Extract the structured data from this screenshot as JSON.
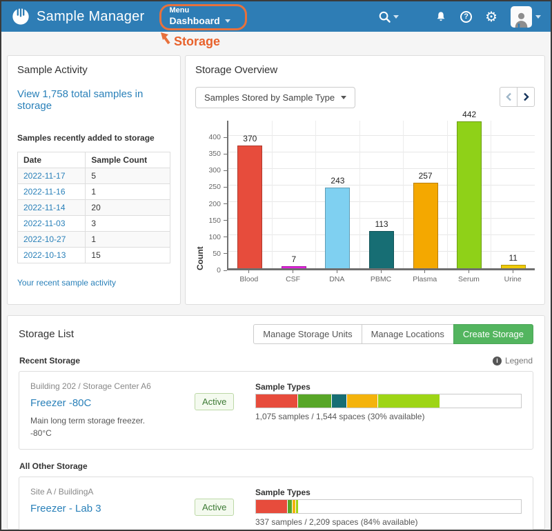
{
  "header": {
    "app_title": "Sample Manager",
    "menu_label": "Menu",
    "menu_value": "Dashboard",
    "icons": [
      "search-icon",
      "product-grid-icon",
      "notifications-bell-icon",
      "help-icon",
      "settings-gear-icon",
      "user-avatar"
    ],
    "header_color": "#2e7db5"
  },
  "annotation": {
    "label": "Storage",
    "color": "#e8622c"
  },
  "sample_activity": {
    "title": "Sample Activity",
    "total_link": "View 1,758 total samples in storage",
    "subtitle": "Samples recently added to storage",
    "table": {
      "columns": [
        "Date",
        "Sample Count"
      ],
      "rows": [
        [
          "2022-11-17",
          "5"
        ],
        [
          "2022-11-16",
          "1"
        ],
        [
          "2022-11-14",
          "20"
        ],
        [
          "2022-11-03",
          "3"
        ],
        [
          "2022-10-27",
          "1"
        ],
        [
          "2022-10-13",
          "15"
        ]
      ]
    },
    "footer_link": "Your recent sample activity"
  },
  "storage_overview": {
    "title": "Storage Overview",
    "dropdown": "Samples Stored by Sample Type",
    "pager": {
      "prev_enabled": false,
      "next_enabled": true
    }
  },
  "chart_data": {
    "type": "bar",
    "title": "",
    "xlabel": "",
    "ylabel": "Count",
    "categories": [
      "Blood",
      "CSF",
      "DNA",
      "PBMC",
      "Plasma",
      "Serum",
      "Urine"
    ],
    "values": [
      370,
      7,
      243,
      113,
      257,
      442,
      11
    ],
    "colors": [
      "#e74c3c",
      "#e320dd",
      "#7fd0f1",
      "#176e74",
      "#f4a800",
      "#8fd118",
      "#efca08"
    ],
    "ylim": [
      0,
      450
    ],
    "yticks": [
      0,
      50,
      100,
      150,
      200,
      250,
      300,
      350,
      400
    ],
    "grid": true,
    "legend_position": "none"
  },
  "storage_list": {
    "title": "Storage List",
    "buttons": [
      "Manage Storage Units",
      "Manage Locations",
      "Create Storage"
    ],
    "legend_label": "Legend",
    "sections": [
      {
        "label": "Recent Storage",
        "cards": [
          {
            "breadcrumb": "Building 202 /  Storage Center A6",
            "name": "Freezer -80C",
            "status": "Active",
            "description": "Main long term storage freezer.",
            "temperature": "-80°C",
            "bar": {
              "label": "Sample Types",
              "segments": [
                {
                  "color": "#e74c3c",
                  "pct": 15.8
                },
                {
                  "color": "#58a628",
                  "pct": 12.8
                },
                {
                  "color": "#176e74",
                  "pct": 5.8
                },
                {
                  "color": "#f4b30c",
                  "pct": 11.6
                },
                {
                  "color": "#9ed516",
                  "pct": 23.2
                }
              ],
              "caption": "1,075 samples / 1,544 spaces (30% available)"
            }
          }
        ]
      },
      {
        "label": "All Other Storage",
        "cards": [
          {
            "breadcrumb": "Site A /  BuildingA",
            "name": "Freezer - Lab 3",
            "status": "Active",
            "bar": {
              "label": "Sample Types",
              "segments": [
                {
                  "color": "#e74c3c",
                  "pct": 12.0
                },
                {
                  "color": "#58a628",
                  "pct": 1.7
                },
                {
                  "color": "#f4b30c",
                  "pct": 1.3
                },
                {
                  "color": "#9ed516",
                  "pct": 0.8
                }
              ],
              "caption": "337 samples / 2,209 spaces (84% available)"
            }
          }
        ]
      }
    ]
  }
}
